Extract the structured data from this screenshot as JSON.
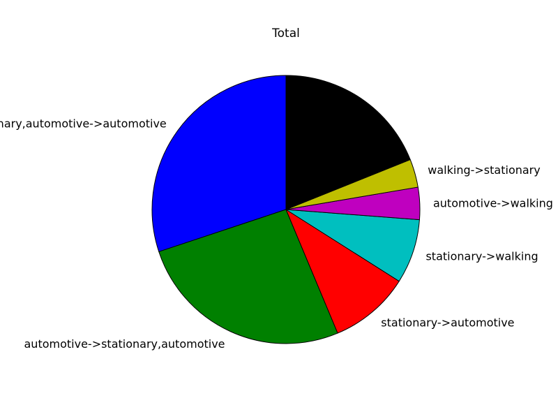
{
  "chart_data": {
    "type": "pie",
    "title": "Total",
    "start_angle_deg": 90,
    "direction": "counterclockwise",
    "slices": [
      {
        "label": "stationary,automotive->automotive",
        "value": 31,
        "color": "#0000ff"
      },
      {
        "label": "automotive->stationary,automotive",
        "value": 27,
        "color": "#008000"
      },
      {
        "label": "stationary->automotive",
        "value": 10,
        "color": "#ff0000"
      },
      {
        "label": "stationary->walking",
        "value": 8,
        "color": "#00bfbf"
      },
      {
        "label": "automotive->walking",
        "value": 4,
        "color": "#bf00bf"
      },
      {
        "label": "walking->stationary",
        "value": 3.5,
        "color": "#bfbf00"
      },
      {
        "label": "",
        "value": 19.5,
        "color": "#000000"
      }
    ]
  }
}
